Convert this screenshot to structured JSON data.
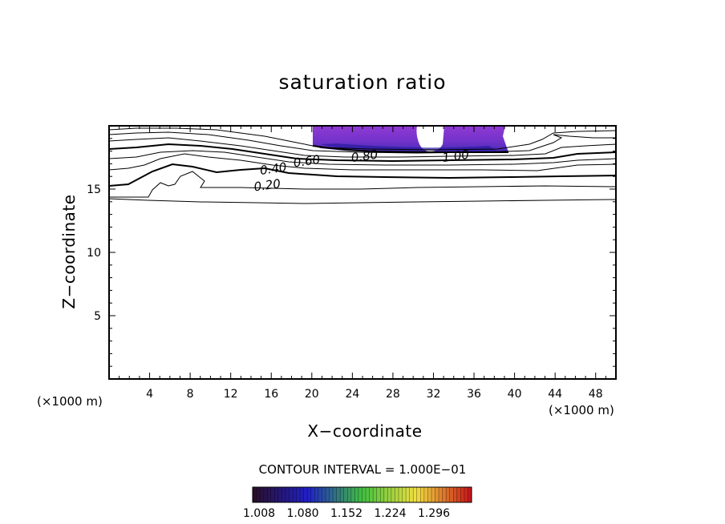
{
  "chart_data": {
    "type": "contour",
    "title": "saturation ratio",
    "xlabel": "X−coordinate",
    "ylabel": "Z−coordinate",
    "x_unit_left": "(×1000 m)",
    "x_unit_right": "(×1000 m)",
    "xlim": [
      0,
      50
    ],
    "ylim": [
      0,
      20
    ],
    "x_ticks": [
      4,
      8,
      12,
      16,
      20,
      24,
      28,
      32,
      36,
      40,
      44,
      48
    ],
    "y_ticks": [
      5,
      10,
      15
    ],
    "contour_interval_text": "CONTOUR INTERVAL = 1.000E−01",
    "contour_labels": [
      {
        "text": "0.20",
        "x": 15.6,
        "z": 15.3
      },
      {
        "text": "0.40",
        "x": 16.2,
        "z": 16.6
      },
      {
        "text": "0.60",
        "x": 19.5,
        "z": 17.2
      },
      {
        "text": "0.80",
        "x": 25.2,
        "z": 17.6
      },
      {
        "text": "1.00",
        "x": 34.2,
        "z": 17.6
      }
    ],
    "shaded_region": {
      "x_range": [
        20,
        39
      ],
      "z_range": [
        17.8,
        20
      ],
      "min_value": 1.0
    },
    "colorbar": {
      "tick_labels": [
        "1.008",
        "1.080",
        "1.152",
        "1.224",
        "1.296"
      ],
      "colors": [
        "#2a0f2a",
        "#2020c8",
        "#40c040",
        "#f0e040",
        "#c81818"
      ]
    }
  }
}
